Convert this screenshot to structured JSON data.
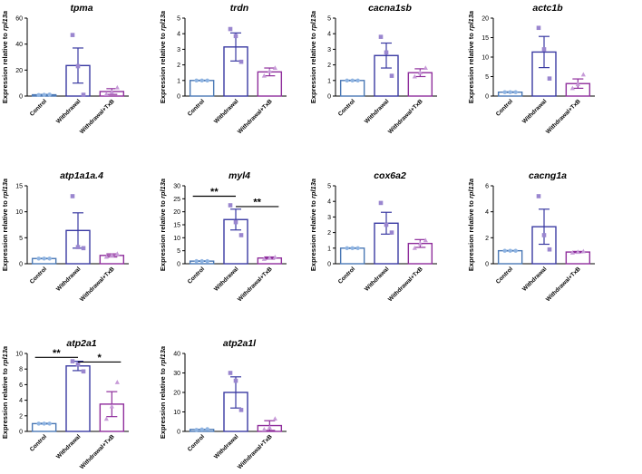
{
  "chart_data": [
    {
      "type": "bar",
      "title": "tpma",
      "ylabel_prefix": "Expression relative to ",
      "ylabel_gene": "rpl13a",
      "ylim": [
        0,
        60
      ],
      "yticks": [
        "0",
        "20",
        "40",
        "60"
      ],
      "categories": [
        "Control",
        "Withdrawal",
        "Withdrawal+TxB"
      ],
      "values": [
        1,
        23.5,
        3.5
      ],
      "errors": [
        0.3,
        13.5,
        2.2
      ],
      "points": [
        [
          0.8,
          1,
          1.2
        ],
        [
          47,
          23,
          1
        ],
        [
          1.5,
          3,
          6.5
        ]
      ],
      "significance": []
    },
    {
      "type": "bar",
      "title": "trdn",
      "ylabel_prefix": "Expression relative to ",
      "ylabel_gene": "rpl13a",
      "ylim": [
        0,
        5
      ],
      "yticks": [
        "0",
        "1",
        "2",
        "3",
        "4",
        "5"
      ],
      "categories": [
        "Control",
        "Withdrawal",
        "Withdrawal+TxB"
      ],
      "values": [
        1,
        3.15,
        1.55
      ],
      "errors": [
        0.02,
        0.9,
        0.25
      ],
      "points": [
        [
          1,
          1,
          1
        ],
        [
          4.3,
          3.85,
          2.2
        ],
        [
          1.3,
          1.6,
          1.8
        ]
      ],
      "significance": []
    },
    {
      "type": "bar",
      "title": "cacna1sb",
      "ylabel_prefix": "Expression relative to ",
      "ylabel_gene": "rpl13a",
      "ylim": [
        0,
        5
      ],
      "yticks": [
        "0",
        "1",
        "2",
        "3",
        "4",
        "5"
      ],
      "categories": [
        "Control",
        "Withdrawal",
        "Withdrawal+TxB"
      ],
      "values": [
        1,
        2.6,
        1.5
      ],
      "errors": [
        0.02,
        0.8,
        0.25
      ],
      "points": [
        [
          1,
          1,
          1
        ],
        [
          3.8,
          2.8,
          1.3
        ],
        [
          1.25,
          1.5,
          1.8
        ]
      ],
      "significance": []
    },
    {
      "type": "bar",
      "title": "actc1b",
      "ylabel_prefix": "Expression relative to ",
      "ylabel_gene": "rpl13a",
      "ylim": [
        0,
        20
      ],
      "yticks": [
        "0",
        "5",
        "10",
        "15",
        "20"
      ],
      "categories": [
        "Control",
        "Withdrawal",
        "Withdrawal+TxB"
      ],
      "values": [
        1,
        11.3,
        3.2
      ],
      "errors": [
        0.1,
        4,
        1.2
      ],
      "points": [
        [
          1,
          1,
          1
        ],
        [
          17.5,
          12,
          4.5
        ],
        [
          2,
          3,
          5.5
        ]
      ],
      "significance": []
    },
    {
      "type": "bar",
      "title": "atp1a1a.4",
      "ylabel_prefix": "Expression relative to ",
      "ylabel_gene": "rpl13a",
      "ylim": [
        0,
        15
      ],
      "yticks": [
        "0",
        "5",
        "10",
        "15"
      ],
      "categories": [
        "Control",
        "Withdrawal",
        "Withdrawal+TxB"
      ],
      "values": [
        1,
        6.4,
        1.6
      ],
      "errors": [
        0.05,
        3.4,
        0.3
      ],
      "points": [
        [
          1,
          1,
          1
        ],
        [
          13,
          3.2,
          3
        ],
        [
          1.3,
          1.6,
          1.9
        ]
      ],
      "significance": []
    },
    {
      "type": "bar",
      "title": "myl4",
      "ylabel_prefix": "Expression relative to ",
      "ylabel_gene": "rpl13a",
      "ylim": [
        0,
        30
      ],
      "yticks": [
        "0",
        "5",
        "10",
        "15",
        "20",
        "25",
        "30"
      ],
      "categories": [
        "Control",
        "Withdrawal",
        "Withdrawal+TxB"
      ],
      "values": [
        1,
        17,
        2.2
      ],
      "errors": [
        0.1,
        4,
        0.4
      ],
      "points": [
        [
          1,
          1,
          1
        ],
        [
          22.5,
          16,
          11
        ],
        [
          1.8,
          2.2,
          2.5
        ]
      ],
      "significance": [
        {
          "from": 0,
          "to": 1,
          "label": "**",
          "y": 26
        },
        {
          "from": 1,
          "to": 2,
          "label": "**",
          "y": 22
        }
      ]
    },
    {
      "type": "bar",
      "title": "cox6a2",
      "ylabel_prefix": "Expression relative to ",
      "ylabel_gene": "rpl13a",
      "ylim": [
        0,
        5
      ],
      "yticks": [
        "0",
        "1",
        "2",
        "3",
        "4",
        "5"
      ],
      "categories": [
        "Control",
        "Withdrawal",
        "Withdrawal+TxB"
      ],
      "values": [
        1,
        2.6,
        1.3
      ],
      "errors": [
        0.02,
        0.7,
        0.25
      ],
      "points": [
        [
          1,
          1,
          1
        ],
        [
          3.9,
          2.5,
          2
        ],
        [
          1,
          1.3,
          1.5
        ]
      ],
      "significance": []
    },
    {
      "type": "bar",
      "title": "cacng1a",
      "ylabel_prefix": "Expression relative to ",
      "ylabel_gene": "rpl13a",
      "ylim": [
        0,
        6
      ],
      "yticks": [
        "0",
        "2",
        "4",
        "6"
      ],
      "categories": [
        "Control",
        "Withdrawal",
        "Withdrawal+TxB"
      ],
      "values": [
        1,
        2.85,
        0.9
      ],
      "errors": [
        0.02,
        1.35,
        0.05
      ],
      "points": [
        [
          1,
          1,
          1
        ],
        [
          5.2,
          2.2,
          1.1
        ],
        [
          0.85,
          0.9,
          0.95
        ]
      ],
      "significance": []
    },
    {
      "type": "bar",
      "title": "atp2a1",
      "ylabel_prefix": "Expression relative to ",
      "ylabel_gene": "rpl13a",
      "ylim": [
        0,
        10
      ],
      "yticks": [
        "0",
        "2",
        "4",
        "6",
        "8",
        "10"
      ],
      "categories": [
        "Control",
        "Withdrawal",
        "Withdrawal+TxB"
      ],
      "values": [
        1,
        8.4,
        3.5
      ],
      "errors": [
        0.05,
        0.6,
        1.6
      ],
      "points": [
        [
          1,
          1,
          1
        ],
        [
          9,
          8.6,
          7.7
        ],
        [
          1.6,
          3.2,
          6.3
        ]
      ],
      "significance": [
        {
          "from": 0,
          "to": 1,
          "label": "**",
          "y": 9.5
        },
        {
          "from": 1,
          "to": 2,
          "label": "*",
          "y": 8.9
        }
      ]
    },
    {
      "type": "bar",
      "title": "atp2a1l",
      "ylabel_prefix": "Expression relative to ",
      "ylabel_gene": "rpl13a",
      "ylim": [
        0,
        40
      ],
      "yticks": [
        "0",
        "10",
        "20",
        "30",
        "40"
      ],
      "categories": [
        "Control",
        "Withdrawal",
        "Withdrawal+TxB"
      ],
      "values": [
        1,
        20,
        3
      ],
      "errors": [
        0.1,
        8,
        2.5
      ],
      "points": [
        [
          0.8,
          1,
          1.2
        ],
        [
          30,
          26,
          11
        ],
        [
          1,
          2,
          6.5
        ]
      ],
      "significance": []
    }
  ],
  "colors": {
    "control": "#4a78b5",
    "withdrawal": "#3a3aa2",
    "txb": "#8f2e9c",
    "control_point": "#8fb4e2",
    "withdrawal_point": "#9a86cf",
    "txb_point": "#c79bd8",
    "axis": "#000000"
  }
}
